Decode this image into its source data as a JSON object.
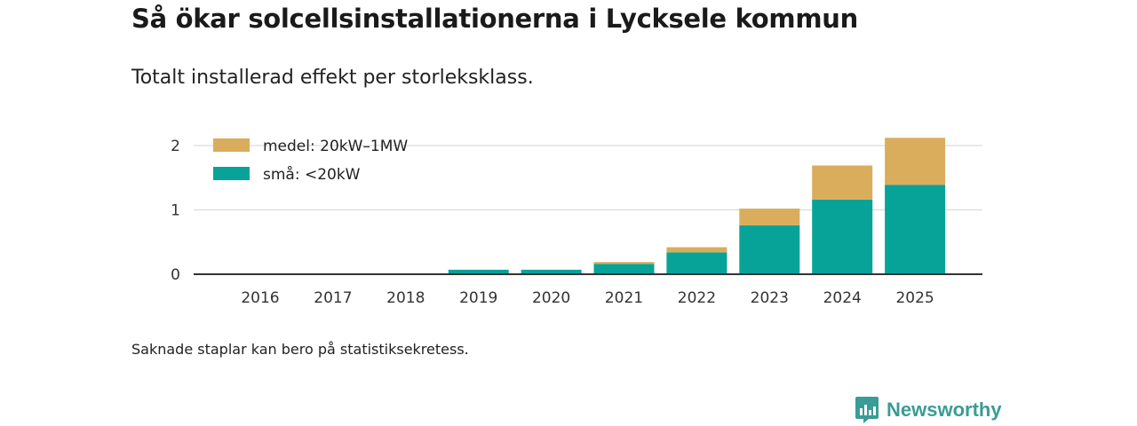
{
  "title": "Så ökar solcellsinstallationerna i Lycksele kommun",
  "subtitle": "Totalt installerad effekt per storleksklass.",
  "note": "Saknade staplar kan bero på statistiksekretess.",
  "brand": {
    "name": "Newsworthy",
    "icon": "newsworthy-logo-icon"
  },
  "colors": {
    "medel": "#d9ad5b",
    "sma": "#07a399",
    "brand": "#3a9c96"
  },
  "chart_data": {
    "type": "bar",
    "stacked": true,
    "categories": [
      "2016",
      "2017",
      "2018",
      "2019",
      "2020",
      "2021",
      "2022",
      "2023",
      "2024",
      "2025"
    ],
    "series": [
      {
        "name": "små: <20kW",
        "key": "sma",
        "values": [
          0,
          0,
          0,
          0.07,
          0.07,
          0.16,
          0.34,
          0.76,
          1.16,
          1.39
        ]
      },
      {
        "name": "medel: 20kW–1MW",
        "key": "medel",
        "values": [
          0,
          0,
          0,
          0,
          0,
          0.03,
          0.08,
          0.26,
          0.53,
          0.73
        ]
      }
    ],
    "legend": [
      "medel: 20kW–1MW",
      "små: <20kW"
    ],
    "yticks": [
      "0",
      "1",
      "2"
    ],
    "ylim": [
      0,
      2.2
    ],
    "grid": true,
    "legend_position": "top-left",
    "xlabel": "",
    "ylabel": ""
  }
}
